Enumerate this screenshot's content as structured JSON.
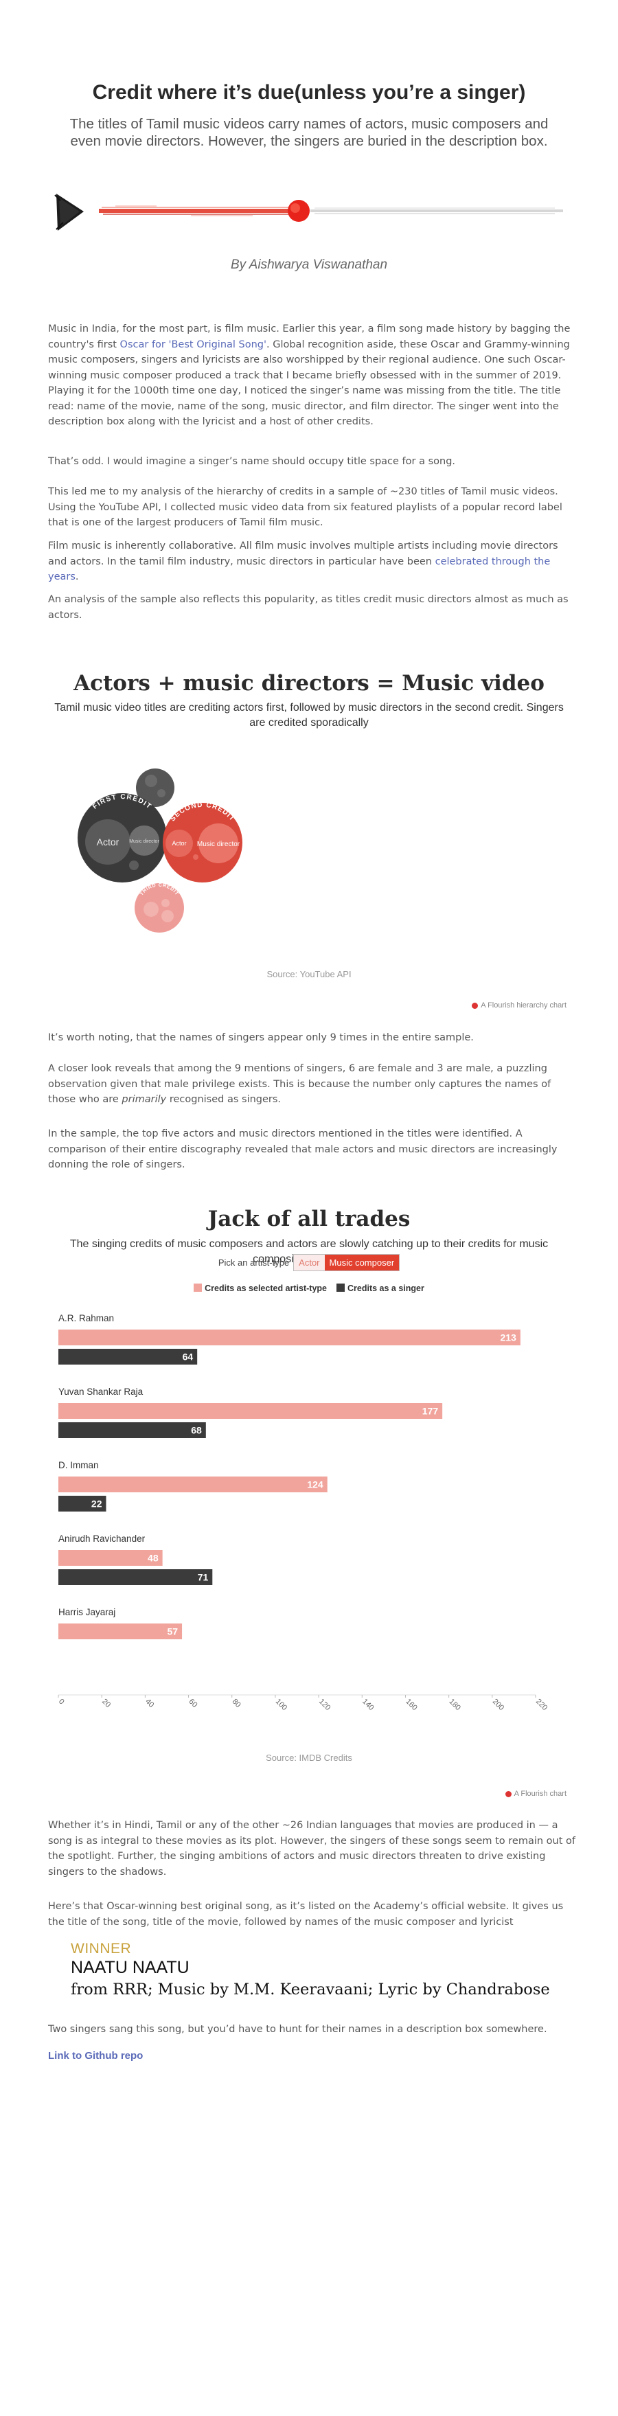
{
  "header": {
    "title": "Credit where it’s due(unless you’re a singer)",
    "subtitle": "The titles of Tamil music videos carry names of actors, music composers and even movie directors. However, the singers are buried in the description box.",
    "byline": "By Aishwarya Viswanathan"
  },
  "intro": {
    "p1_before": "Music in India, for the most part, is film music. Earlier this year, a film song made history by bagging the country's first ",
    "p1_link": "Oscar for 'Best Original Song'",
    "p1_after": ". Global recognition aside, these Oscar and Grammy-winning music composers, singers and lyricists are also worshipped by their regional audience. One such Oscar-winning music composer produced a track that I became briefly obsessed with in the summer of 2019. Playing it for the 1000th time one day, I noticed the singer’s name was missing from the title. The title read: name of the movie, name of the song, music director, and film director. The singer went into the description box along with the lyricist and a host of other credits.",
    "p2": "That’s odd. I would imagine a singer’s name should occupy title space for a song.",
    "p3": "This led me to my analysis of the hierarchy of credits in a sample of ~230 titles of Tamil music videos. Using the YouTube API, I collected music video data from six featured playlists of a popular record label that is one of the largest producers of Tamil film music.",
    "p4_before": "Film music is inherently collaborative. All film music involves multiple artists including movie directors and actors. In the tamil film industry, music directors in particular have been ",
    "p4_link": "celebrated through the years",
    "p4_after": ".",
    "p5": "An analysis of the sample also reflects this popularity, as titles credit music directors almost as much as actors."
  },
  "section1": {
    "title": "Actors + music directors = Music video",
    "subtitle": "Tamil music video titles are crediting actors first, followed by music directors in the second credit. Singers are credited sporadically",
    "source": "Source: YouTube API",
    "flourish": "A Flourish hierarchy chart"
  },
  "hierarchy": {
    "groups": [
      {
        "label": "FIRST CREDIT",
        "color": "#3a3a3a",
        "inner": [
          {
            "label": "Actor",
            "color": "#5a5a5a",
            "text_color": "#eeeeee"
          },
          {
            "label": "Music director",
            "color": "#6e6e6e",
            "text_color": "#dddddd"
          }
        ]
      },
      {
        "label": "SECOND CREDIT",
        "color": "#d9473a",
        "inner": [
          {
            "label": "Actor",
            "color": "#e6685c",
            "text_color": "#ffffff"
          },
          {
            "label": "Music director",
            "color": "#ea7468",
            "text_color": "#ffffff"
          }
        ]
      },
      {
        "label": "THIRD CREDIT",
        "color": "#ee9c98",
        "inner": []
      },
      {
        "label": "",
        "color": "#555555",
        "inner": []
      }
    ]
  },
  "mid": {
    "p6": "It’s worth noting, that the names of singers appear only 9 times in the entire sample.",
    "p7_before": "A closer look reveals that among the 9 mentions of singers, 6 are female and 3 are male, a puzzling observation given that male privilege exists. This is because the number only captures the names of those who are ",
    "p7_em": "primarily",
    "p7_after": " recognised as singers.",
    "p8": "In the sample, the top five actors and music directors mentioned in the titles were identified. A comparison of their entire discography revealed that male actors and music directors are increasingly donning the role of singers."
  },
  "section2": {
    "title": "Jack of all trades",
    "subtitle": "The singing credits of music composers and actors are slowly catching up to their credits for music composition and acting",
    "picker_label": "Pick an artist-type",
    "picker_options": [
      "Actor",
      "Music composer"
    ],
    "picker_selected": "Music composer",
    "source": "Source: IMDB Credits",
    "flourish": "A Flourish chart"
  },
  "chart_data": {
    "type": "bar",
    "orientation": "horizontal",
    "categories": [
      "A.R. Rahman",
      "Yuvan Shankar Raja",
      "D. Imman",
      "Anirudh Ravichander",
      "Harris Jayaraj"
    ],
    "series": [
      {
        "name": "Credits as selected artist-type",
        "color": "#f1a49c",
        "values": [
          213,
          177,
          124,
          48,
          57
        ]
      },
      {
        "name": "Credits as a singer",
        "color": "#3b3b3b",
        "values": [
          64,
          68,
          22,
          71,
          null
        ]
      }
    ],
    "xlim": [
      0,
      220
    ],
    "xticks": [
      "0",
      "20",
      "40",
      "60",
      "80",
      "100",
      "120",
      "140",
      "160",
      "180",
      "200",
      "220"
    ],
    "legend_position": "top-center",
    "grid": false
  },
  "outro": {
    "p9": "Whether it’s in Hindi, Tamil or any of the other ~26 Indian languages that movies are produced in — a song is as integral to these movies as its plot. However, the singers of these songs seem to remain out of the spotlight. Further, the singing ambitions of actors and music directors threaten to drive existing singers to the shadows.",
    "p10": "Here’s that Oscar-winning best original song, as it’s listed on the Academy’s official website. It gives us the title of the song, title of the movie, followed by names of the music composer and lyricist",
    "winner_label": "WINNER",
    "winner_song": "NAATU NAATU",
    "winner_credits": "from RRR; Music by M.M. Keeravaani; Lyric by Chandrabose",
    "p11": "Two singers sang this song, but you’d have to hunt for their names in a description box somewhere.",
    "repo_link": "Link to Github repo"
  }
}
